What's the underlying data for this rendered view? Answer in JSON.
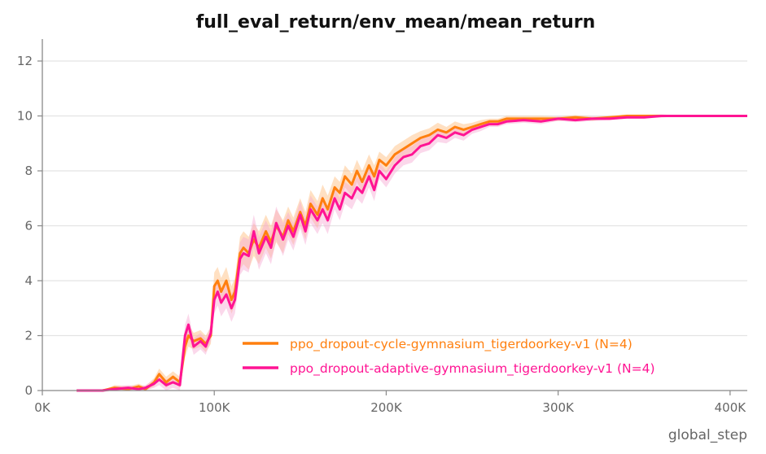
{
  "chart_data": {
    "type": "line",
    "title": "full_eval_return/env_mean/mean_return",
    "xlabel": "global_step",
    "ylabel": "",
    "xlim": [
      0,
      410000
    ],
    "ylim": [
      0,
      12.8
    ],
    "x_ticks": [
      0,
      100000,
      200000,
      300000,
      400000
    ],
    "x_tick_labels": [
      "0K",
      "100K",
      "200K",
      "300K",
      "400K"
    ],
    "y_ticks": [
      0,
      2,
      4,
      6,
      8,
      10,
      12
    ],
    "y_tick_labels": [
      "0",
      "2",
      "4",
      "6",
      "8",
      "10",
      "12"
    ],
    "grid": "horizontal",
    "legend_position": "bottom-right",
    "series": [
      {
        "name": "ppo_dropout-cycle-gymnasium_tigerdoorkey-v1 (N=4)",
        "color": "#ff7f0e",
        "band_color": "#ffbb78",
        "x": [
          20000,
          35000,
          42000,
          50000,
          56000,
          60000,
          65000,
          68000,
          72000,
          76000,
          80000,
          83000,
          85000,
          88000,
          92000,
          95000,
          98000,
          100000,
          102000,
          104000,
          107000,
          110000,
          112000,
          115000,
          117000,
          120000,
          123000,
          126000,
          130000,
          133000,
          136000,
          140000,
          143000,
          146000,
          150000,
          153000,
          156000,
          160000,
          163000,
          166000,
          170000,
          173000,
          176000,
          180000,
          183000,
          186000,
          190000,
          193000,
          196000,
          200000,
          205000,
          210000,
          215000,
          220000,
          225000,
          230000,
          235000,
          240000,
          245000,
          250000,
          255000,
          260000,
          265000,
          270000,
          280000,
          290000,
          300000,
          310000,
          320000,
          330000,
          340000,
          350000,
          360000,
          370000,
          380000,
          390000,
          400000,
          410000
        ],
        "y": [
          0,
          0,
          0.1,
          0.05,
          0.15,
          0.05,
          0.3,
          0.6,
          0.3,
          0.5,
          0.3,
          1.6,
          2.0,
          1.8,
          1.9,
          1.7,
          2.0,
          3.8,
          4.0,
          3.6,
          4.0,
          3.3,
          3.6,
          5.0,
          5.2,
          5.0,
          5.5,
          5.2,
          5.8,
          5.4,
          6.0,
          5.6,
          6.2,
          5.8,
          6.5,
          6.0,
          6.8,
          6.4,
          7.0,
          6.6,
          7.4,
          7.2,
          7.8,
          7.5,
          8.0,
          7.6,
          8.2,
          7.8,
          8.4,
          8.2,
          8.6,
          8.8,
          9.0,
          9.2,
          9.3,
          9.5,
          9.4,
          9.6,
          9.5,
          9.6,
          9.7,
          9.8,
          9.8,
          9.9,
          9.9,
          9.9,
          9.9,
          9.95,
          9.9,
          9.95,
          10,
          10,
          10,
          10,
          10,
          10,
          10,
          10
        ],
        "band": [
          0,
          0,
          0.1,
          0.1,
          0.1,
          0.1,
          0.15,
          0.2,
          0.2,
          0.2,
          0.2,
          0.4,
          0.4,
          0.3,
          0.3,
          0.3,
          0.3,
          0.5,
          0.5,
          0.5,
          0.5,
          0.5,
          0.5,
          0.6,
          0.6,
          0.6,
          0.6,
          0.6,
          0.6,
          0.6,
          0.6,
          0.6,
          0.5,
          0.5,
          0.5,
          0.5,
          0.5,
          0.5,
          0.5,
          0.5,
          0.4,
          0.4,
          0.4,
          0.4,
          0.4,
          0.4,
          0.4,
          0.4,
          0.3,
          0.3,
          0.3,
          0.3,
          0.3,
          0.25,
          0.25,
          0.25,
          0.2,
          0.2,
          0.2,
          0.15,
          0.15,
          0.1,
          0.1,
          0.1,
          0.1,
          0.1,
          0.08,
          0.08,
          0.08,
          0.05,
          0.05,
          0.05,
          0.05,
          0.03,
          0,
          0,
          0,
          0
        ]
      },
      {
        "name": "ppo_dropout-adaptive-gymnasium_tigerdoorkey-v1 (N=4)",
        "color": "#ff1493",
        "band_color": "#f7a8d2",
        "x": [
          20000,
          35000,
          42000,
          50000,
          56000,
          60000,
          65000,
          68000,
          72000,
          76000,
          80000,
          83000,
          85000,
          88000,
          92000,
          95000,
          98000,
          100000,
          102000,
          104000,
          107000,
          110000,
          112000,
          115000,
          117000,
          120000,
          123000,
          126000,
          130000,
          133000,
          136000,
          140000,
          143000,
          146000,
          150000,
          153000,
          156000,
          160000,
          163000,
          166000,
          170000,
          173000,
          176000,
          180000,
          183000,
          186000,
          190000,
          193000,
          196000,
          200000,
          205000,
          210000,
          215000,
          220000,
          225000,
          230000,
          235000,
          240000,
          245000,
          250000,
          255000,
          260000,
          265000,
          270000,
          280000,
          290000,
          300000,
          310000,
          320000,
          330000,
          340000,
          350000,
          360000,
          370000,
          380000,
          390000,
          400000,
          410000
        ],
        "y": [
          0,
          0,
          0.05,
          0.1,
          0.05,
          0.1,
          0.25,
          0.4,
          0.2,
          0.3,
          0.2,
          2.0,
          2.4,
          1.6,
          1.8,
          1.6,
          2.1,
          3.3,
          3.6,
          3.2,
          3.5,
          3.0,
          3.3,
          4.8,
          5.0,
          4.9,
          5.8,
          5.0,
          5.6,
          5.2,
          6.1,
          5.5,
          6.0,
          5.6,
          6.4,
          5.8,
          6.6,
          6.2,
          6.6,
          6.2,
          7.0,
          6.6,
          7.2,
          7.0,
          7.4,
          7.2,
          7.8,
          7.3,
          8.0,
          7.7,
          8.2,
          8.5,
          8.6,
          8.9,
          9.0,
          9.3,
          9.2,
          9.4,
          9.3,
          9.5,
          9.6,
          9.7,
          9.7,
          9.8,
          9.85,
          9.8,
          9.9,
          9.85,
          9.9,
          9.9,
          9.95,
          9.95,
          10,
          10,
          10,
          10,
          10,
          10
        ],
        "band": [
          0,
          0,
          0.1,
          0.1,
          0.1,
          0.1,
          0.15,
          0.2,
          0.2,
          0.2,
          0.2,
          0.4,
          0.4,
          0.3,
          0.3,
          0.3,
          0.3,
          0.5,
          0.5,
          0.5,
          0.5,
          0.5,
          0.5,
          0.6,
          0.6,
          0.6,
          0.6,
          0.6,
          0.6,
          0.6,
          0.6,
          0.6,
          0.5,
          0.5,
          0.5,
          0.5,
          0.5,
          0.5,
          0.5,
          0.5,
          0.4,
          0.4,
          0.4,
          0.4,
          0.4,
          0.4,
          0.4,
          0.4,
          0.3,
          0.3,
          0.3,
          0.3,
          0.3,
          0.25,
          0.25,
          0.25,
          0.2,
          0.2,
          0.2,
          0.15,
          0.15,
          0.1,
          0.1,
          0.1,
          0.1,
          0.1,
          0.08,
          0.08,
          0.08,
          0.05,
          0.05,
          0.05,
          0.05,
          0.03,
          0,
          0,
          0,
          0
        ]
      }
    ]
  }
}
